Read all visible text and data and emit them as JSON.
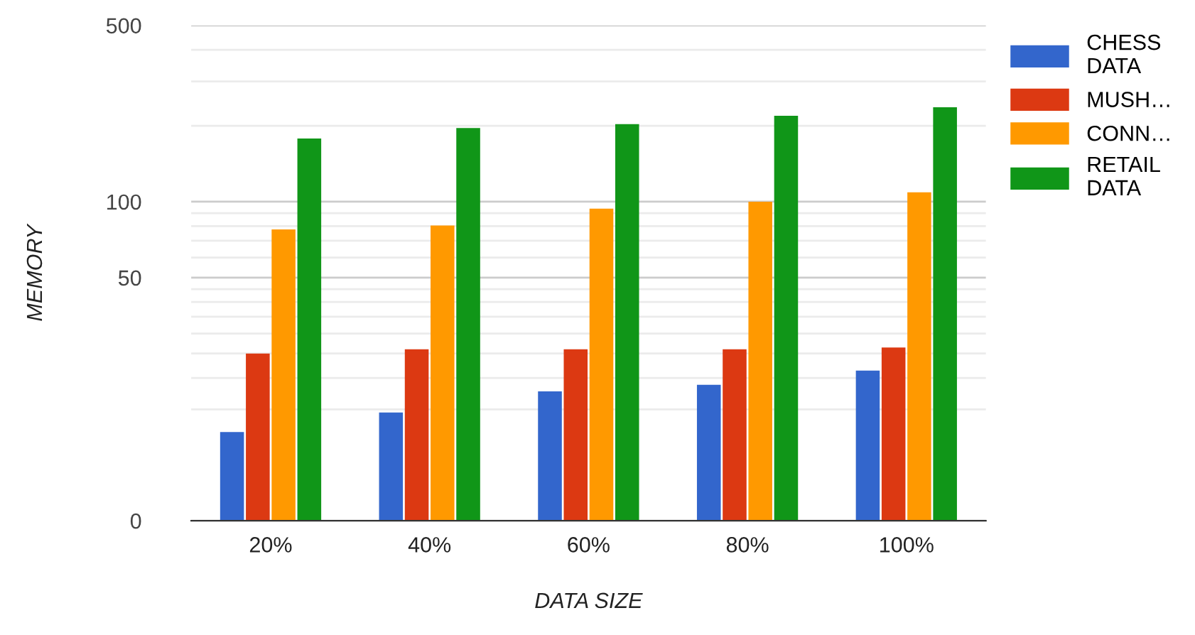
{
  "chart_data": {
    "type": "bar",
    "xlabel": "DATA SIZE",
    "ylabel": "MEMORY",
    "categories": [
      "20%",
      "40%",
      "60%",
      "80%",
      "100%"
    ],
    "series": [
      {
        "name": "CHESS DATA",
        "color": "#3366cc",
        "values": [
          12.2,
          14.6,
          17.7,
          18.8,
          21.4
        ]
      },
      {
        "name": "MUSH…",
        "color": "#dc3912",
        "values": [
          25.0,
          26.0,
          26.0,
          26.0,
          26.4
        ]
      },
      {
        "name": "CONN…",
        "color": "#ff9900",
        "values": [
          77.6,
          80.5,
          93.8,
          100,
          108.9
        ]
      },
      {
        "name": "RETAIL DATA",
        "color": "#109618",
        "values": [
          178,
          196,
          203,
          219,
          237
        ]
      }
    ],
    "log": "y",
    "ylim": [
      0,
      500
    ],
    "yticks": [
      0,
      50,
      100,
      500
    ],
    "grid": true,
    "legend": "right"
  }
}
